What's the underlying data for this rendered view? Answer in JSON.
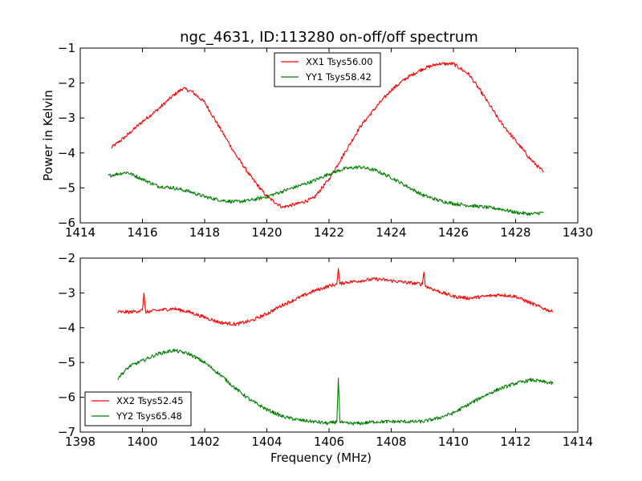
{
  "title": "ngc_4631, ID:113280 on-off/off spectrum",
  "colors": {
    "XX": "#ff0000",
    "YY": "#008000",
    "axis": "#000000",
    "background": "#ffffff"
  },
  "chart_data": [
    {
      "type": "line",
      "title": "ngc_4631, ID:113280 on-off/off spectrum",
      "xlabel": "",
      "ylabel": "Power in Kelvin",
      "xlim": [
        1414,
        1430
      ],
      "ylim": [
        -6,
        -1
      ],
      "xticks": [
        1414,
        1416,
        1418,
        1420,
        1422,
        1424,
        1426,
        1428,
        1430
      ],
      "yticks": [
        -6,
        -5,
        -4,
        -3,
        -2,
        -1
      ],
      "grid": false,
      "legend_position": "top-center",
      "series": [
        {
          "name": "XX1 Tsys56.00",
          "color": "#ff0000",
          "x": [
            1415.0,
            1415.5,
            1416.0,
            1416.5,
            1417.0,
            1417.3,
            1417.6,
            1418.0,
            1418.5,
            1419.0,
            1419.5,
            1420.0,
            1420.5,
            1421.0,
            1421.5,
            1422.0,
            1422.5,
            1423.0,
            1423.5,
            1424.0,
            1424.5,
            1425.0,
            1425.5,
            1426.0,
            1426.5,
            1427.0,
            1427.5,
            1428.0,
            1428.5,
            1428.9
          ],
          "y": [
            -3.85,
            -3.5,
            -3.1,
            -2.75,
            -2.35,
            -2.15,
            -2.25,
            -2.55,
            -3.3,
            -4.05,
            -4.7,
            -5.25,
            -5.55,
            -5.45,
            -5.3,
            -4.75,
            -4.0,
            -3.25,
            -2.7,
            -2.2,
            -1.85,
            -1.6,
            -1.45,
            -1.45,
            -1.75,
            -2.4,
            -3.1,
            -3.65,
            -4.2,
            -4.55
          ]
        },
        {
          "name": "YY1 Tsys58.42",
          "color": "#008000",
          "x": [
            1414.9,
            1415.5,
            1416.0,
            1416.5,
            1417.0,
            1417.5,
            1418.0,
            1418.5,
            1419.0,
            1419.5,
            1420.0,
            1420.5,
            1421.0,
            1421.5,
            1422.0,
            1422.5,
            1423.0,
            1423.5,
            1424.0,
            1424.5,
            1425.0,
            1425.5,
            1426.0,
            1426.5,
            1427.0,
            1427.5,
            1428.0,
            1428.5,
            1428.9
          ],
          "y": [
            -4.65,
            -4.55,
            -4.75,
            -4.95,
            -5.0,
            -5.1,
            -5.25,
            -5.35,
            -5.4,
            -5.35,
            -5.25,
            -5.1,
            -4.95,
            -4.8,
            -4.6,
            -4.45,
            -4.4,
            -4.5,
            -4.7,
            -4.95,
            -5.2,
            -5.35,
            -5.45,
            -5.5,
            -5.55,
            -5.6,
            -5.7,
            -5.75,
            -5.7
          ]
        }
      ]
    },
    {
      "type": "line",
      "xlabel": "Frequency (MHz)",
      "ylabel": "",
      "xlim": [
        1398,
        1414
      ],
      "ylim": [
        -7,
        -2
      ],
      "xticks": [
        1398,
        1400,
        1402,
        1404,
        1406,
        1408,
        1410,
        1412,
        1414
      ],
      "yticks": [
        -7,
        -6,
        -5,
        -4,
        -3,
        -2
      ],
      "grid": false,
      "legend_position": "bottom-left",
      "series": [
        {
          "name": "XX2 Tsys52.45",
          "color": "#ff0000",
          "x": [
            1399.2,
            1399.6,
            1400.0,
            1400.05,
            1400.1,
            1400.5,
            1401.0,
            1401.5,
            1402.0,
            1402.5,
            1403.0,
            1403.5,
            1404.0,
            1404.5,
            1405.0,
            1405.5,
            1406.0,
            1406.25,
            1406.3,
            1406.35,
            1406.5,
            1407.0,
            1407.5,
            1408.0,
            1408.5,
            1409.0,
            1409.05,
            1409.1,
            1409.5,
            1410.0,
            1410.5,
            1411.0,
            1411.5,
            1412.0,
            1412.5,
            1413.2
          ],
          "y": [
            -3.55,
            -3.55,
            -3.5,
            -3.0,
            -3.55,
            -3.5,
            -3.45,
            -3.55,
            -3.7,
            -3.85,
            -3.9,
            -3.8,
            -3.6,
            -3.35,
            -3.15,
            -2.95,
            -2.8,
            -2.75,
            -2.3,
            -2.75,
            -2.7,
            -2.65,
            -2.6,
            -2.65,
            -2.7,
            -2.75,
            -2.4,
            -2.8,
            -2.95,
            -3.1,
            -3.15,
            -3.1,
            -3.05,
            -3.1,
            -3.3,
            -3.55
          ]
        },
        {
          "name": "YY2 Tsys65.48",
          "color": "#008000",
          "x": [
            1399.2,
            1399.6,
            1400.0,
            1400.5,
            1401.0,
            1401.5,
            1402.0,
            1402.5,
            1403.0,
            1403.5,
            1404.0,
            1404.5,
            1405.0,
            1405.5,
            1406.0,
            1406.25,
            1406.3,
            1406.35,
            1406.5,
            1407.0,
            1407.5,
            1408.0,
            1408.5,
            1409.0,
            1409.5,
            1410.0,
            1410.5,
            1411.0,
            1411.5,
            1412.0,
            1412.5,
            1413.2
          ],
          "y": [
            -5.45,
            -5.1,
            -4.95,
            -4.75,
            -4.65,
            -4.75,
            -5.0,
            -5.35,
            -5.75,
            -6.1,
            -6.35,
            -6.55,
            -6.65,
            -6.7,
            -6.75,
            -6.7,
            -5.45,
            -6.7,
            -6.75,
            -6.75,
            -6.7,
            -6.7,
            -6.7,
            -6.7,
            -6.6,
            -6.45,
            -6.2,
            -5.95,
            -5.75,
            -5.6,
            -5.5,
            -5.6
          ]
        }
      ]
    }
  ]
}
